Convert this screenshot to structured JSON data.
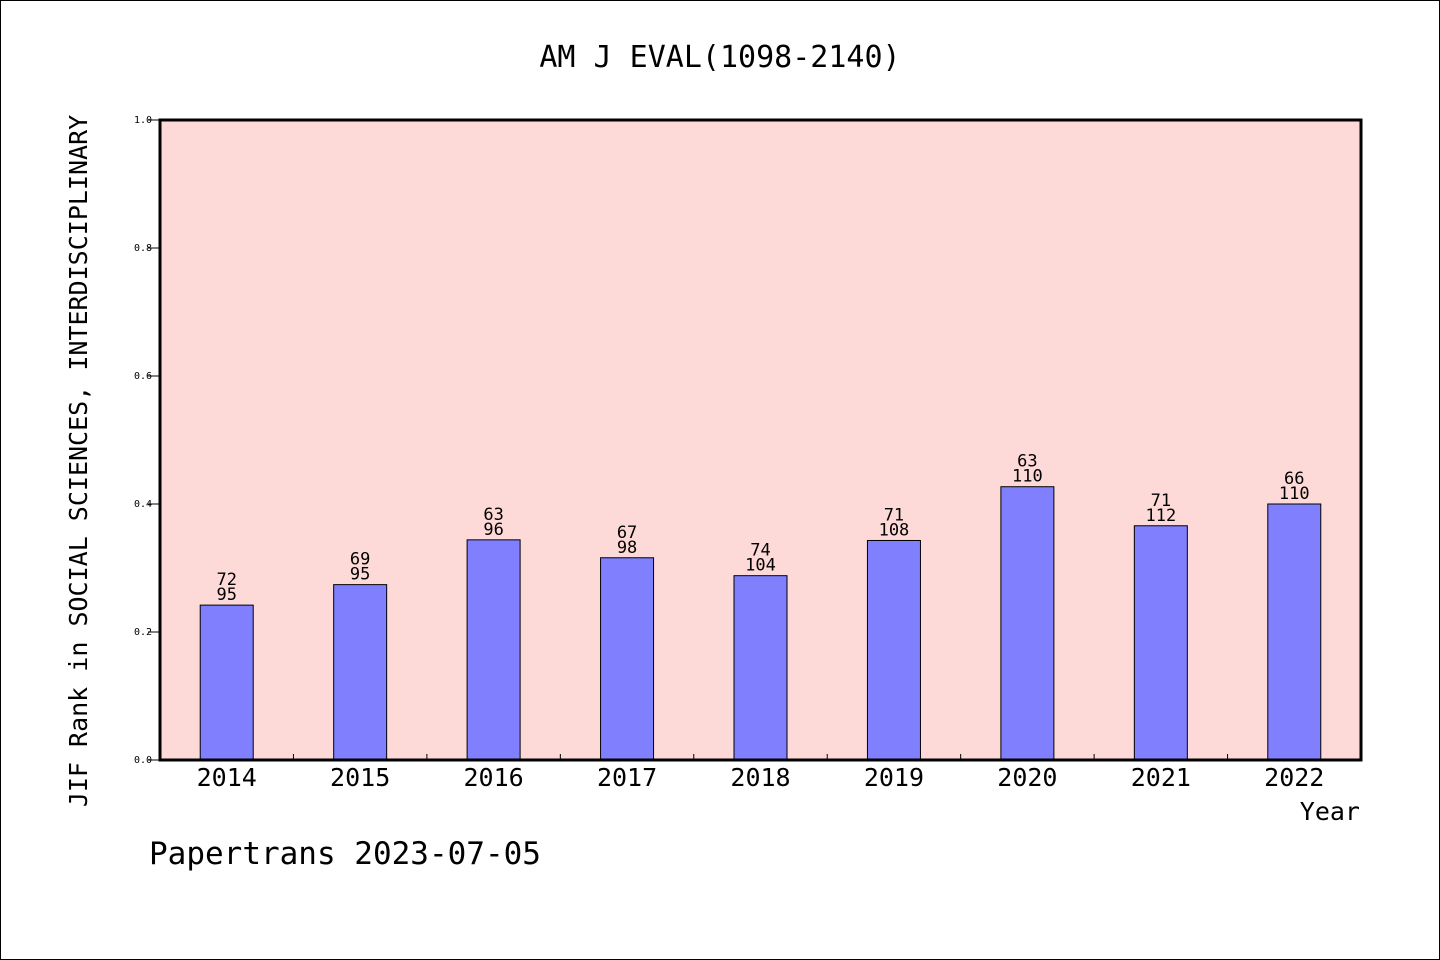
{
  "chart_data": {
    "type": "bar",
    "title": "AM J EVAL(1098-2140)",
    "xlabel": "Year",
    "ylabel": "JIF Rank in SOCIAL SCIENCES, INTERDISCIPLINARY",
    "ylim": [
      0,
      1.0
    ],
    "yticks": [
      "0.0",
      "0.2",
      "0.4",
      "0.6",
      "0.8",
      "1.0"
    ],
    "categories": [
      "2014",
      "2015",
      "2016",
      "2017",
      "2018",
      "2019",
      "2020",
      "2021",
      "2022"
    ],
    "values": [
      0.242,
      0.274,
      0.344,
      0.316,
      0.288,
      0.343,
      0.427,
      0.366,
      0.4
    ],
    "rank_labels": [
      "72",
      "69",
      "63",
      "67",
      "74",
      "71",
      "63",
      "71",
      "66"
    ],
    "total_labels": [
      "95",
      "95",
      "96",
      "98",
      "104",
      "108",
      "110",
      "112",
      "110"
    ],
    "grid": false,
    "colors": {
      "plot_background": "#fddad7",
      "bar_fill": "#8080ff",
      "bar_stroke": "#000000"
    }
  },
  "footer": {
    "text": "Papertrans 2023-07-05"
  }
}
